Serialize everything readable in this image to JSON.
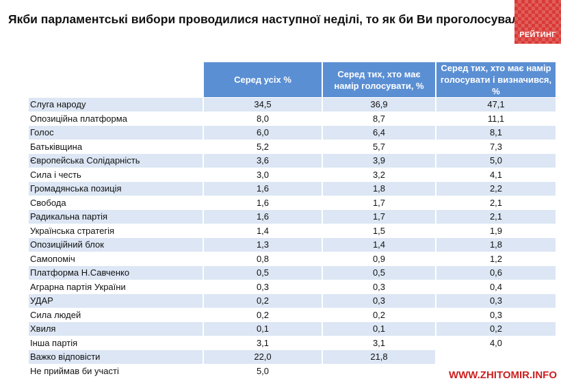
{
  "title": "Якби парламентські вибори проводилися наступної неділі, то як би Ви проголосували?",
  "logo": {
    "text": "РЕЙТИНГ",
    "color": "#d93a37"
  },
  "table": {
    "columns": [
      "Серед усіх %",
      "Серед тих, хто має намір голосувати, %",
      "Серед тих, хто має намір голосувати і визначився, %"
    ],
    "header_color": "#5b8fd3",
    "stripe_color": "#dce6f4",
    "rows": [
      {
        "party": "Слуга народу",
        "all": "34,5",
        "voting": "36,9",
        "decided": "47,1"
      },
      {
        "party": "Опозиційна платформа",
        "all": "8,0",
        "voting": "8,7",
        "decided": "11,1"
      },
      {
        "party": "Голос",
        "all": "6,0",
        "voting": "6,4",
        "decided": "8,1"
      },
      {
        "party": "Батьківщина",
        "all": "5,2",
        "voting": "5,7",
        "decided": "7,3"
      },
      {
        "party": "Європейська Солідарність",
        "all": "3,6",
        "voting": "3,9",
        "decided": "5,0"
      },
      {
        "party": "Сила і честь",
        "all": "3,0",
        "voting": "3,2",
        "decided": "4,1"
      },
      {
        "party": "Громадянська позиція",
        "all": "1,6",
        "voting": "1,8",
        "decided": "2,2"
      },
      {
        "party": "Свобода",
        "all": "1,6",
        "voting": "1,7",
        "decided": "2,1"
      },
      {
        "party": "Радикальна партія",
        "all": "1,6",
        "voting": "1,7",
        "decided": "2,1"
      },
      {
        "party": "Українська стратегія",
        "all": "1,4",
        "voting": "1,5",
        "decided": "1,9"
      },
      {
        "party": "Опозиційний блок",
        "all": "1,3",
        "voting": "1,4",
        "decided": "1,8"
      },
      {
        "party": "Самопоміч",
        "all": "0,8",
        "voting": "0,9",
        "decided": "1,2"
      },
      {
        "party": "Платформа Н.Савченко",
        "all": "0,5",
        "voting": "0,5",
        "decided": "0,6"
      },
      {
        "party": "Аграрна партія України",
        "all": "0,3",
        "voting": "0,3",
        "decided": "0,4"
      },
      {
        "party": "УДАР",
        "all": "0,2",
        "voting": "0,3",
        "decided": "0,3"
      },
      {
        "party": "Сила людей",
        "all": "0,2",
        "voting": "0,2",
        "decided": "0,3"
      },
      {
        "party": "Хвиля",
        "all": "0,1",
        "voting": "0,1",
        "decided": "0,2"
      },
      {
        "party": "Інша партія",
        "all": "3,1",
        "voting": "3,1",
        "decided": "4,0"
      },
      {
        "party": "Важко відповісти",
        "all": "22,0",
        "voting": "21,8",
        "decided": ""
      },
      {
        "party": "Не приймав би участі",
        "all": "5,0",
        "voting": "",
        "decided": ""
      }
    ]
  },
  "watermark": {
    "text": "WWW.ZHITOMIR.INFO",
    "color": "#cc1f1f"
  }
}
